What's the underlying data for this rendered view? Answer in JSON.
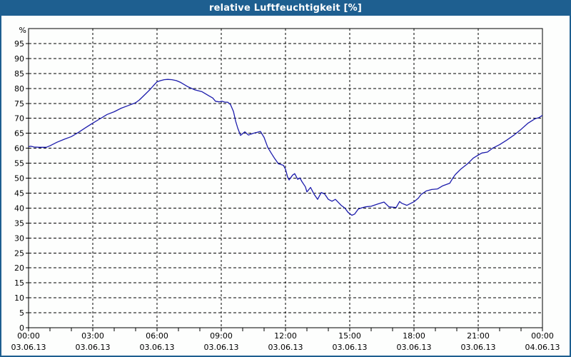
{
  "window": {
    "title": "relative Luftfeuchtigkeit [%]"
  },
  "colors": {
    "titlebar_bg": "#1e5f90",
    "titlebar_fg": "#ffffff",
    "frame_border": "#1e5f90",
    "page_bg": "#fdfefd",
    "grid": "#000000",
    "axis": "#000000",
    "label": "#000000",
    "line": "#1c1cac"
  },
  "chart_data": {
    "type": "line",
    "title": "relative Luftfeuchtigkeit [%]",
    "ylabel": "%",
    "unit_label": "%",
    "ylim": [
      0,
      100
    ],
    "xlim_hours": [
      0,
      24
    ],
    "grid": "dashed",
    "legend_position": "none",
    "y_ticks": [
      0,
      5,
      10,
      15,
      20,
      25,
      30,
      35,
      40,
      45,
      50,
      55,
      60,
      65,
      70,
      75,
      80,
      85,
      90,
      95
    ],
    "grid_hours": [
      3,
      6,
      9,
      12,
      15,
      18,
      21
    ],
    "minor_x_tick_every_hours": 1,
    "x_ticks": [
      {
        "hour": 0,
        "time": "00:00",
        "date": "03.06.13"
      },
      {
        "hour": 3,
        "time": "03:00",
        "date": "03.06.13"
      },
      {
        "hour": 6,
        "time": "06:00",
        "date": "03.06.13"
      },
      {
        "hour": 9,
        "time": "09:00",
        "date": "03.06.13"
      },
      {
        "hour": 12,
        "time": "12:00",
        "date": "03.06.13"
      },
      {
        "hour": 15,
        "time": "15:00",
        "date": "03.06.13"
      },
      {
        "hour": 18,
        "time": "18:00",
        "date": "03.06.13"
      },
      {
        "hour": 21,
        "time": "21:00",
        "date": "03.06.13"
      },
      {
        "hour": 24,
        "time": "00:00",
        "date": "04.06.13"
      }
    ],
    "series": [
      {
        "name": "relative Luftfeuchtigkeit",
        "color": "#1c1cac",
        "points": [
          [
            0.0,
            60.5
          ],
          [
            0.1,
            60.7
          ],
          [
            0.25,
            60.4
          ],
          [
            0.5,
            60.3
          ],
          [
            0.83,
            60.3
          ],
          [
            1.0,
            60.8
          ],
          [
            1.33,
            62.0
          ],
          [
            1.67,
            63.0
          ],
          [
            2.0,
            63.9
          ],
          [
            2.33,
            65.3
          ],
          [
            2.67,
            66.9
          ],
          [
            3.0,
            68.4
          ],
          [
            3.33,
            69.8
          ],
          [
            3.67,
            71.3
          ],
          [
            4.0,
            72.2
          ],
          [
            4.33,
            73.4
          ],
          [
            4.67,
            74.3
          ],
          [
            5.0,
            75.2
          ],
          [
            5.17,
            76.1
          ],
          [
            5.33,
            77.2
          ],
          [
            5.5,
            78.4
          ],
          [
            5.67,
            79.6
          ],
          [
            5.83,
            80.9
          ],
          [
            6.0,
            82.2
          ],
          [
            6.17,
            82.6
          ],
          [
            6.33,
            82.9
          ],
          [
            6.5,
            83.0
          ],
          [
            6.7,
            82.9
          ],
          [
            6.9,
            82.6
          ],
          [
            7.1,
            82.0
          ],
          [
            7.43,
            80.6
          ],
          [
            7.77,
            79.5
          ],
          [
            8.1,
            78.9
          ],
          [
            8.43,
            77.5
          ],
          [
            8.6,
            76.8
          ],
          [
            8.73,
            75.7
          ],
          [
            8.9,
            75.5
          ],
          [
            9.03,
            75.7
          ],
          [
            9.17,
            75.4
          ],
          [
            9.3,
            75.4
          ],
          [
            9.43,
            74.6
          ],
          [
            9.57,
            72.3
          ],
          [
            9.67,
            69.1
          ],
          [
            9.77,
            66.7
          ],
          [
            9.9,
            64.3
          ],
          [
            10.1,
            65.5
          ],
          [
            10.27,
            64.4
          ],
          [
            10.5,
            65.0
          ],
          [
            10.67,
            65.3
          ],
          [
            10.83,
            65.6
          ],
          [
            11.0,
            63.6
          ],
          [
            11.17,
            60.3
          ],
          [
            11.33,
            58.4
          ],
          [
            11.5,
            56.5
          ],
          [
            11.67,
            54.8
          ],
          [
            11.9,
            54.3
          ],
          [
            12.0,
            53.0
          ],
          [
            12.1,
            50.3
          ],
          [
            12.17,
            49.4
          ],
          [
            12.33,
            51.0
          ],
          [
            12.43,
            51.5
          ],
          [
            12.57,
            49.6
          ],
          [
            12.67,
            50.1
          ],
          [
            12.77,
            48.8
          ],
          [
            12.93,
            47.1
          ],
          [
            13.0,
            45.4
          ],
          [
            13.17,
            46.9
          ],
          [
            13.33,
            44.7
          ],
          [
            13.5,
            42.9
          ],
          [
            13.67,
            45.2
          ],
          [
            13.83,
            44.7
          ],
          [
            14.0,
            42.9
          ],
          [
            14.17,
            42.3
          ],
          [
            14.33,
            42.9
          ],
          [
            14.6,
            40.9
          ],
          [
            14.77,
            40.0
          ],
          [
            14.93,
            38.5
          ],
          [
            15.1,
            37.6
          ],
          [
            15.23,
            38.0
          ],
          [
            15.4,
            39.7
          ],
          [
            15.57,
            40.1
          ],
          [
            15.73,
            40.4
          ],
          [
            16.0,
            40.6
          ],
          [
            16.33,
            41.4
          ],
          [
            16.6,
            42.0
          ],
          [
            16.83,
            40.4
          ],
          [
            17.17,
            40.2
          ],
          [
            17.33,
            42.2
          ],
          [
            17.43,
            41.6
          ],
          [
            17.67,
            40.9
          ],
          [
            18.0,
            42.1
          ],
          [
            18.2,
            43.3
          ],
          [
            18.33,
            44.5
          ],
          [
            18.57,
            45.7
          ],
          [
            18.83,
            46.2
          ],
          [
            19.1,
            46.4
          ],
          [
            19.33,
            47.4
          ],
          [
            19.67,
            48.3
          ],
          [
            19.83,
            50.2
          ],
          [
            19.93,
            51.2
          ],
          [
            20.17,
            52.9
          ],
          [
            20.5,
            54.8
          ],
          [
            20.77,
            56.7
          ],
          [
            21.0,
            57.7
          ],
          [
            21.17,
            58.4
          ],
          [
            21.43,
            58.7
          ],
          [
            21.67,
            60.0
          ],
          [
            22.0,
            61.2
          ],
          [
            22.33,
            62.7
          ],
          [
            22.67,
            64.4
          ],
          [
            23.0,
            66.3
          ],
          [
            23.33,
            68.4
          ],
          [
            23.67,
            69.9
          ],
          [
            23.83,
            70.2
          ],
          [
            24.0,
            71.0
          ]
        ]
      }
    ]
  }
}
